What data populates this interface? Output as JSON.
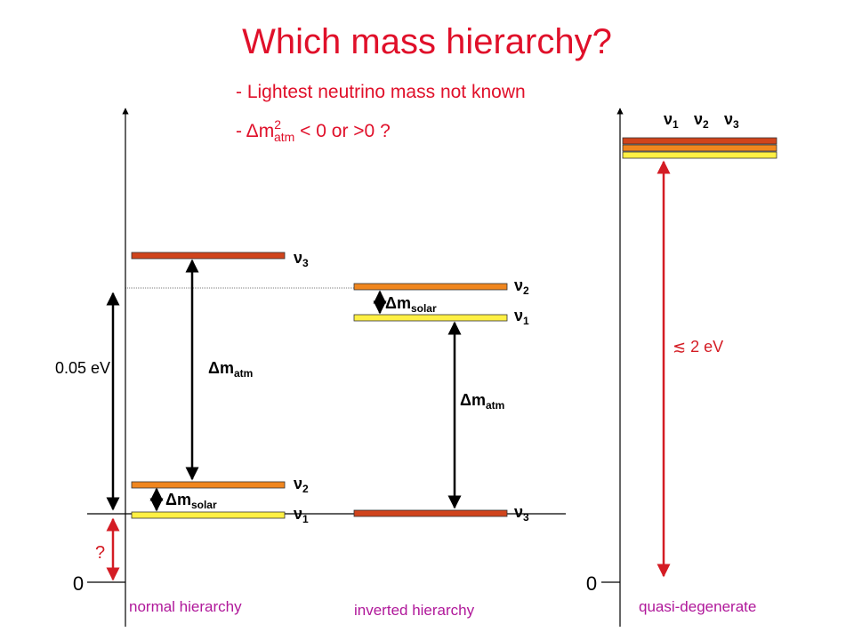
{
  "title": "Which mass hierarchy?",
  "bullets": {
    "first": "- Lightest neutrino mass not known",
    "second": {
      "pre": "- Δm",
      "sup": "2",
      "sub": "atm",
      "post": " < 0 or >0 ?"
    }
  },
  "normal": {
    "caption": "normal hierarchy",
    "levels": [
      {
        "symbol": "ν",
        "index": "3"
      },
      {
        "symbol": "ν",
        "index": "2"
      },
      {
        "symbol": "ν",
        "index": "1"
      }
    ],
    "atm": {
      "base": "Δm",
      "sub": "atm"
    },
    "solar": {
      "base": "Δm",
      "sub": "solar"
    },
    "gap": "0.05 eV",
    "unknown": "?",
    "zero": "0"
  },
  "inverted": {
    "caption": "inverted hierarchy",
    "levels": [
      {
        "symbol": "ν",
        "index": "2"
      },
      {
        "symbol": "ν",
        "index": "1"
      },
      {
        "symbol": "ν",
        "index": "3"
      }
    ],
    "atm": {
      "base": "Δm",
      "sub": "atm"
    },
    "solar": {
      "base": "Δm",
      "sub": "solar"
    }
  },
  "degenerate": {
    "caption": "quasi-degenerate",
    "levels": [
      {
        "symbol": "ν",
        "index": "1"
      },
      {
        "symbol": "ν",
        "index": "2"
      },
      {
        "symbol": "ν",
        "index": "3"
      }
    ],
    "scale": "≲ 2 eV",
    "zero": "0"
  }
}
